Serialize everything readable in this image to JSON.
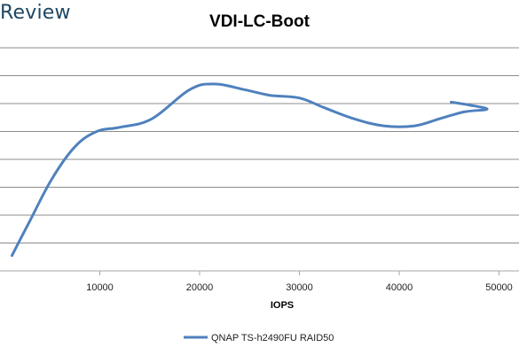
{
  "brand": "Review",
  "chart_data": {
    "type": "line",
    "title": "VDI-LC-Boot",
    "xlabel": "IOPS",
    "ylabel": "",
    "xlim": [
      0,
      52000
    ],
    "ylim": [
      0,
      8
    ],
    "x_ticks": [
      10000,
      20000,
      30000,
      40000,
      50000
    ],
    "grid": true,
    "legend_position": "bottom",
    "series": [
      {
        "name": "QNAP TS-h2490FU RAID50",
        "color": "#4f81bd",
        "points": [
          [
            1200,
            0.55
          ],
          [
            3000,
            1.8
          ],
          [
            5200,
            3.3
          ],
          [
            7500,
            4.45
          ],
          [
            9700,
            5.0
          ],
          [
            12000,
            5.15
          ],
          [
            15200,
            5.45
          ],
          [
            19000,
            6.5
          ],
          [
            21500,
            6.7
          ],
          [
            24500,
            6.5
          ],
          [
            27000,
            6.3
          ],
          [
            30000,
            6.2
          ],
          [
            32500,
            5.85
          ],
          [
            35500,
            5.45
          ],
          [
            38500,
            5.2
          ],
          [
            41500,
            5.2
          ],
          [
            44000,
            5.45
          ],
          [
            46500,
            5.7
          ],
          [
            48800,
            5.8
          ],
          [
            47000,
            5.95
          ],
          [
            45200,
            6.05
          ]
        ]
      }
    ]
  }
}
